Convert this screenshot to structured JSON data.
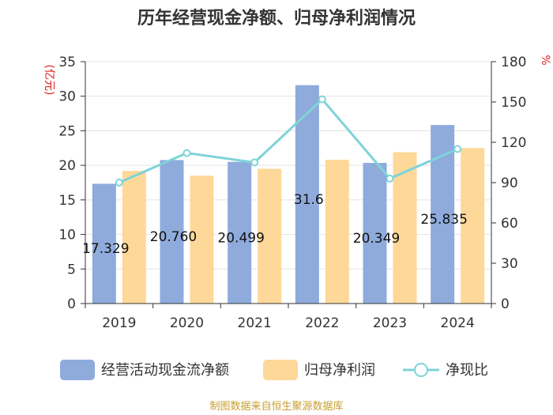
{
  "chart_data": {
    "type": "bar",
    "title": "历年经营现金净额、归母净利润情况",
    "categories": [
      "2019",
      "2020",
      "2021",
      "2022",
      "2023",
      "2024"
    ],
    "y_left": {
      "label": "(亿元)",
      "range": [
        0,
        35
      ],
      "ticks": [
        "0",
        "5",
        "10",
        "15",
        "20",
        "25",
        "30",
        "35"
      ]
    },
    "y_right": {
      "label": "%",
      "range": [
        0,
        180
      ],
      "ticks": [
        "0",
        "30",
        "60",
        "90",
        "120",
        "150",
        "180"
      ]
    },
    "series": [
      {
        "name": "经营活动现金流净额",
        "type": "bar",
        "axis": "left",
        "color": "#8eabdc",
        "values": [
          17.329,
          20.76,
          20.499,
          31.6,
          20.349,
          25.835
        ],
        "labels": [
          "17.329",
          "20.760",
          "20.499",
          "31.6",
          "20.349",
          "25.835"
        ]
      },
      {
        "name": "归母净利润",
        "type": "bar",
        "axis": "left",
        "color": "#fdd899",
        "values": [
          19.2,
          18.5,
          19.5,
          20.8,
          21.9,
          22.5
        ]
      },
      {
        "name": "净现比",
        "type": "line",
        "axis": "right",
        "color": "#7fd3d8",
        "values": [
          90,
          112,
          105,
          152,
          93,
          115
        ]
      }
    ],
    "grid": true,
    "legend_position": "bottom",
    "source": "制图数据来自恒生聚源数据库"
  }
}
